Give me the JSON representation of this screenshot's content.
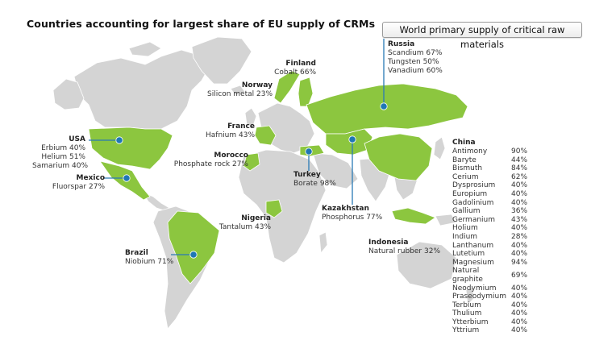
{
  "title": "Countries accounting for largest share of EU supply of CRMs",
  "button_label": "World primary supply of critical raw materials",
  "colors": {
    "highlight": "#8cc63f",
    "land": "#d4d4d4",
    "marker": "#1f77b4",
    "leader": "#2a7ab5"
  },
  "countries": [
    {
      "id": "russia",
      "name": "Russia",
      "items": [
        "Scandium 67%",
        "Tungsten 50%",
        "Vanadium 60%"
      ]
    },
    {
      "id": "finland",
      "name": "Finland",
      "items": [
        "Cobalt 66%"
      ]
    },
    {
      "id": "norway",
      "name": "Norway",
      "items": [
        "Silicon metal 23%"
      ]
    },
    {
      "id": "france",
      "name": "France",
      "items": [
        "Hafnium 43%"
      ]
    },
    {
      "id": "usa",
      "name": "USA",
      "items": [
        "Erbium 40%",
        "Helium 51%",
        "Samarium 40%"
      ]
    },
    {
      "id": "mexico",
      "name": "Mexico",
      "items": [
        "Fluorspar 27%"
      ]
    },
    {
      "id": "morocco",
      "name": "Morocco",
      "items": [
        "Phosphate rock 27%"
      ]
    },
    {
      "id": "turkey",
      "name": "Turkey",
      "items": [
        "Borate 98%"
      ]
    },
    {
      "id": "kazakhstan",
      "name": "Kazakhstan",
      "items": [
        "Phosphorus 77%"
      ]
    },
    {
      "id": "nigeria",
      "name": "Nigeria",
      "items": [
        "Tantalum 43%"
      ]
    },
    {
      "id": "indonesia",
      "name": "Indonesia",
      "items": [
        "Natural rubber 32%"
      ]
    },
    {
      "id": "brazil",
      "name": "Brazil",
      "items": [
        "Niobium 71%"
      ]
    }
  ],
  "china": {
    "name": "China",
    "items": [
      {
        "material": "Antimony",
        "share": "90%"
      },
      {
        "material": "Baryte",
        "share": "44%"
      },
      {
        "material": "Bismuth",
        "share": "84%"
      },
      {
        "material": "Cerium",
        "share": "62%"
      },
      {
        "material": "Dysprosium",
        "share": "40%"
      },
      {
        "material": "Europium",
        "share": "40%"
      },
      {
        "material": "Gadolinium",
        "share": "40%"
      },
      {
        "material": "Gallium",
        "share": "36%"
      },
      {
        "material": "Germanium",
        "share": "43%"
      },
      {
        "material": "Holium",
        "share": "40%"
      },
      {
        "material": "Indium",
        "share": "28%"
      },
      {
        "material": "Lanthanum",
        "share": "40%"
      },
      {
        "material": "Lutetium",
        "share": "40%"
      },
      {
        "material": "Magnesium",
        "share": "94%"
      },
      {
        "material": "Natural graphite",
        "share": "69%"
      },
      {
        "material": "Neodymium",
        "share": "40%"
      },
      {
        "material": "Praseodymium",
        "share": "40%"
      },
      {
        "material": "Terbium",
        "share": "40%"
      },
      {
        "material": "Thulium",
        "share": "40%"
      },
      {
        "material": "Ytterbium",
        "share": "40%"
      },
      {
        "material": "Yttrium",
        "share": "40%"
      }
    ]
  }
}
